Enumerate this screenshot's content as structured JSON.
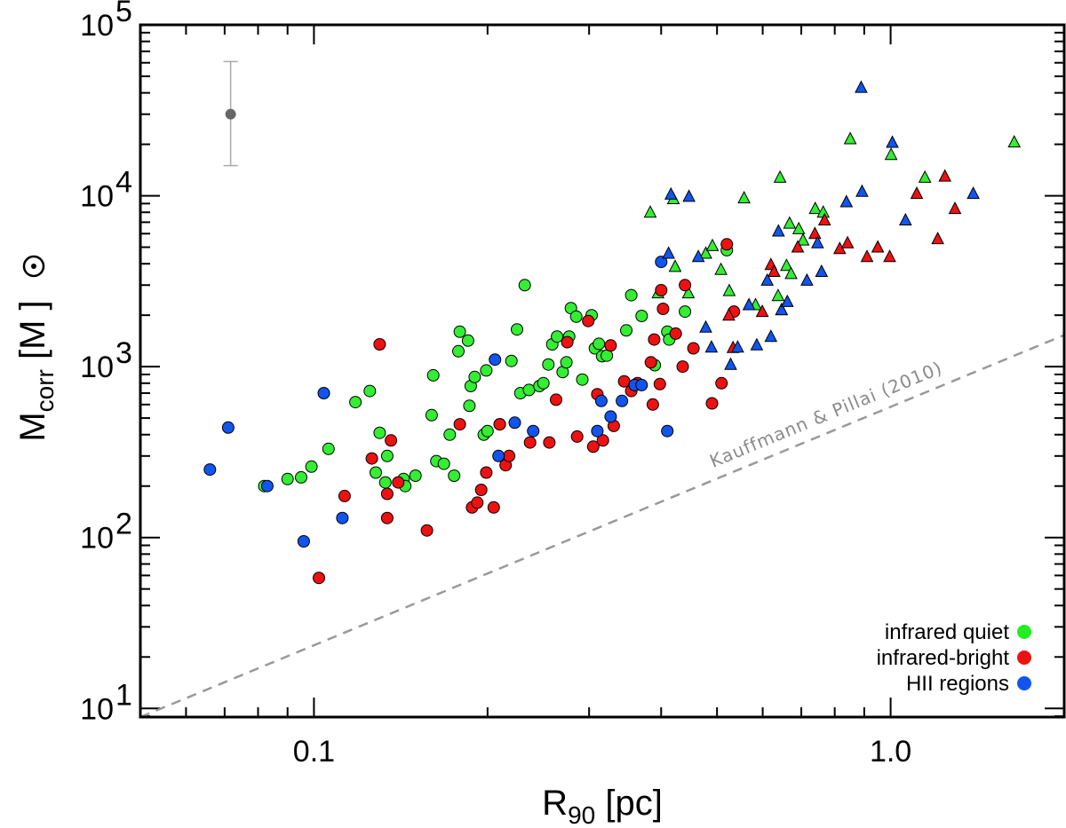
{
  "chart_data": {
    "type": "scatter",
    "xscale": "log",
    "yscale": "log",
    "xlim": [
      0.05,
      2.0
    ],
    "ylim": [
      8.9,
      100000
    ],
    "xlabel": {
      "main": "R",
      "sub": "90",
      "unit": " [pc]"
    },
    "ylabel": {
      "main": "M",
      "sub": "corr",
      "unit_open": " [M",
      "unit_close": "]"
    },
    "x_ticks": [
      {
        "value": 0.1,
        "label": "0.1"
      },
      {
        "value": 1.0,
        "label": "1.0"
      }
    ],
    "y_ticks": [
      {
        "value": 10,
        "base": "10",
        "exp": "1"
      },
      {
        "value": 100,
        "base": "10",
        "exp": "2"
      },
      {
        "value": 1000,
        "base": "10",
        "exp": "3"
      },
      {
        "value": 10000,
        "base": "10",
        "exp": "4"
      },
      {
        "value": 100000,
        "base": "10",
        "exp": "5"
      }
    ],
    "reference_line": {
      "label": "Kauffmann & Pillai (2010)",
      "color": "#999999",
      "points": [
        [
          0.05,
          8.9
        ],
        [
          2.0,
          1530
        ]
      ]
    },
    "error_bar": {
      "x": 0.0717,
      "y": 30000,
      "low": 15000,
      "high": 61000,
      "color": "#666666"
    },
    "legend": [
      {
        "label": "infrared quiet",
        "color": "#22ee22"
      },
      {
        "label": "infrared-bright",
        "color": "#ee1111"
      },
      {
        "label": "HII regions",
        "color": "#1155ee"
      }
    ],
    "series": [
      {
        "name": "infrared quiet",
        "color": "#33ee33",
        "circles": [
          [
            0.082,
            200
          ],
          [
            0.09,
            220
          ],
          [
            0.095,
            225
          ],
          [
            0.099,
            260
          ],
          [
            0.106,
            330
          ],
          [
            0.118,
            620
          ],
          [
            0.125,
            720
          ],
          [
            0.128,
            240
          ],
          [
            0.13,
            410
          ],
          [
            0.133,
            210
          ],
          [
            0.134,
            300
          ],
          [
            0.143,
            220
          ],
          [
            0.144,
            200
          ],
          [
            0.15,
            230
          ],
          [
            0.16,
            520
          ],
          [
            0.161,
            890
          ],
          [
            0.163,
            280
          ],
          [
            0.168,
            270
          ],
          [
            0.172,
            400
          ],
          [
            0.175,
            230
          ],
          [
            0.178,
            1230
          ],
          [
            0.179,
            1600
          ],
          [
            0.185,
            1420
          ],
          [
            0.186,
            590
          ],
          [
            0.187,
            770
          ],
          [
            0.19,
            870
          ],
          [
            0.197,
            400
          ],
          [
            0.199,
            950
          ],
          [
            0.2,
            420
          ],
          [
            0.21,
            460
          ],
          [
            0.22,
            1080
          ],
          [
            0.225,
            1650
          ],
          [
            0.228,
            700
          ],
          [
            0.232,
            3000
          ],
          [
            0.236,
            730
          ],
          [
            0.246,
            770
          ],
          [
            0.25,
            800
          ],
          [
            0.255,
            1030
          ],
          [
            0.259,
            1350
          ],
          [
            0.264,
            1500
          ],
          [
            0.27,
            930
          ],
          [
            0.274,
            1060
          ],
          [
            0.277,
            1500
          ],
          [
            0.279,
            2200
          ],
          [
            0.285,
            1960
          ],
          [
            0.292,
            840
          ],
          [
            0.303,
            2000
          ],
          [
            0.307,
            1280
          ],
          [
            0.312,
            1360
          ],
          [
            0.316,
            1150
          ],
          [
            0.322,
            1160
          ],
          [
            0.348,
            1630
          ],
          [
            0.355,
            2620
          ],
          [
            0.37,
            1980
          ],
          [
            0.39,
            1020
          ],
          [
            0.41,
            1600
          ],
          [
            0.413,
            1440
          ],
          [
            0.44,
            2100
          ],
          [
            0.52,
            4800
          ]
        ],
        "triangles": [
          [
            0.383,
            8000
          ],
          [
            0.42,
            9600
          ],
          [
            0.395,
            2700
          ],
          [
            0.423,
            3850
          ],
          [
            0.446,
            2700
          ],
          [
            0.478,
            4600
          ],
          [
            0.491,
            5100
          ],
          [
            0.508,
            3700
          ],
          [
            0.525,
            2780
          ],
          [
            0.557,
            9700
          ],
          [
            0.583,
            2300
          ],
          [
            0.643,
            12800
          ],
          [
            0.638,
            2600
          ],
          [
            0.66,
            3900
          ],
          [
            0.668,
            6900
          ],
          [
            0.672,
            3500
          ],
          [
            0.693,
            6400
          ],
          [
            0.705,
            5500
          ],
          [
            0.74,
            8400
          ],
          [
            0.764,
            8000
          ],
          [
            0.851,
            21500
          ],
          [
            1.002,
            17400
          ],
          [
            1.147,
            12800
          ],
          [
            1.638,
            20600
          ]
        ]
      },
      {
        "name": "infrared-bright",
        "color": "#ee1111",
        "circles": [
          [
            0.102,
            58
          ],
          [
            0.113,
            175
          ],
          [
            0.126,
            290
          ],
          [
            0.13,
            1350
          ],
          [
            0.134,
            130
          ],
          [
            0.134,
            180
          ],
          [
            0.136,
            370
          ],
          [
            0.14,
            210
          ],
          [
            0.157,
            110
          ],
          [
            0.179,
            460
          ],
          [
            0.188,
            150
          ],
          [
            0.192,
            160
          ],
          [
            0.195,
            190
          ],
          [
            0.199,
            240
          ],
          [
            0.205,
            150
          ],
          [
            0.21,
            460
          ],
          [
            0.215,
            265
          ],
          [
            0.218,
            300
          ],
          [
            0.237,
            360
          ],
          [
            0.256,
            360
          ],
          [
            0.263,
            640
          ],
          [
            0.275,
            1390
          ],
          [
            0.286,
            390
          ],
          [
            0.299,
            1850
          ],
          [
            0.305,
            340
          ],
          [
            0.31,
            690
          ],
          [
            0.317,
            370
          ],
          [
            0.327,
            1330
          ],
          [
            0.331,
            450
          ],
          [
            0.345,
            820
          ],
          [
            0.355,
            720
          ],
          [
            0.36,
            780
          ],
          [
            0.364,
            800
          ],
          [
            0.384,
            1060
          ],
          [
            0.387,
            600
          ],
          [
            0.389,
            1440
          ],
          [
            0.398,
            790
          ],
          [
            0.403,
            2180
          ],
          [
            0.424,
            1560
          ],
          [
            0.436,
            1000
          ],
          [
            0.44,
            3000
          ],
          [
            0.455,
            1280
          ],
          [
            0.49,
            610
          ],
          [
            0.509,
            800
          ],
          [
            0.52,
            5200
          ],
          [
            0.535,
            2100
          ],
          [
            0.4,
            2800
          ]
        ],
        "triangles": [
          [
            0.524,
            2000
          ],
          [
            0.533,
            1290
          ],
          [
            0.599,
            2100
          ],
          [
            0.62,
            3950
          ],
          [
            0.628,
            3600
          ],
          [
            0.647,
            2150
          ],
          [
            0.69,
            5000
          ],
          [
            0.739,
            6000
          ],
          [
            0.768,
            7200
          ],
          [
            0.816,
            4900
          ],
          [
            0.842,
            5300
          ],
          [
            0.91,
            4400
          ],
          [
            0.95,
            5000
          ],
          [
            0.996,
            4400
          ],
          [
            1.11,
            10300
          ],
          [
            1.207,
            5600
          ],
          [
            1.242,
            13000
          ],
          [
            1.293,
            8400
          ]
        ]
      },
      {
        "name": "HII regions",
        "color": "#1155ee",
        "circles": [
          [
            0.066,
            250
          ],
          [
            0.071,
            440
          ],
          [
            0.083,
            200
          ],
          [
            0.096,
            95
          ],
          [
            0.104,
            700
          ],
          [
            0.112,
            130
          ],
          [
            0.206,
            1100
          ],
          [
            0.209,
            300
          ],
          [
            0.223,
            470
          ],
          [
            0.24,
            420
          ],
          [
            0.31,
            420
          ],
          [
            0.315,
            630
          ],
          [
            0.327,
            510
          ],
          [
            0.342,
            630
          ],
          [
            0.36,
            780
          ],
          [
            0.37,
            780
          ],
          [
            0.4,
            4100
          ],
          [
            0.41,
            420
          ]
        ],
        "triangles": [
          [
            0.412,
            4600
          ],
          [
            0.416,
            10200
          ],
          [
            0.447,
            9900
          ],
          [
            0.464,
            4400
          ],
          [
            0.478,
            1700
          ],
          [
            0.489,
            1300
          ],
          [
            0.528,
            1030
          ],
          [
            0.543,
            1300
          ],
          [
            0.568,
            2300
          ],
          [
            0.586,
            1340
          ],
          [
            0.611,
            3200
          ],
          [
            0.62,
            1500
          ],
          [
            0.639,
            6200
          ],
          [
            0.647,
            2150
          ],
          [
            0.662,
            2400
          ],
          [
            0.716,
            3200
          ],
          [
            0.747,
            5300
          ],
          [
            0.759,
            3600
          ],
          [
            0.838,
            9200
          ],
          [
            0.889,
            43000
          ],
          [
            0.892,
            10600
          ],
          [
            1.007,
            20500
          ],
          [
            1.061,
            7200
          ],
          [
            1.391,
            10300
          ]
        ]
      }
    ]
  }
}
